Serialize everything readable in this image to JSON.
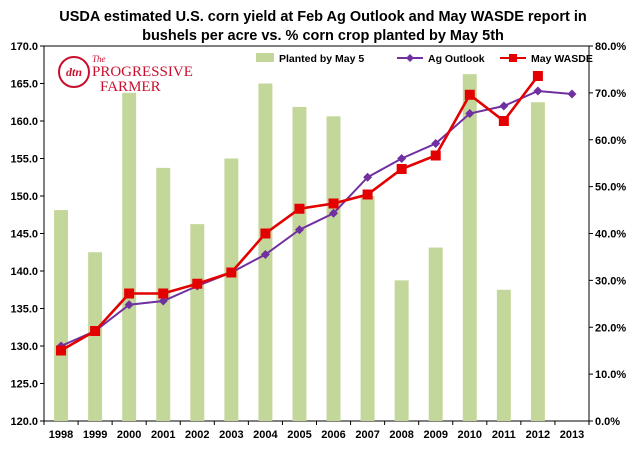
{
  "colors": {
    "bar": "#c4d79b",
    "ag_outlook": "#7030a0",
    "may_wasde": "#e30000",
    "axis": "#000000",
    "logo": "#c8102e"
  },
  "logo": {
    "icon_text": "dtn",
    "line1": "The",
    "line2": "PROGRESSIVE",
    "line3": "FARMER"
  },
  "chart_data": {
    "type": "bar+line",
    "title": "USDA  estimated U.S. corn yield at Feb Ag Outlook and May WASDE report in bushels per acre vs. % corn crop planted by May 5th",
    "title_lines": [
      "USDA  estimated U.S. corn yield at Feb Ag Outlook and May WASDE report in",
      "bushels per acre vs. % corn crop planted by May 5th"
    ],
    "categories": [
      "1998",
      "1999",
      "2000",
      "2001",
      "2002",
      "2003",
      "2004",
      "2005",
      "2006",
      "2007",
      "2008",
      "2009",
      "2010",
      "2011",
      "2012",
      "2013"
    ],
    "left_axis": {
      "range": [
        120,
        170
      ],
      "ticks": [
        "120.0",
        "125.0",
        "130.0",
        "135.0",
        "140.0",
        "145.0",
        "150.0",
        "155.0",
        "160.0",
        "165.0",
        "170.0"
      ]
    },
    "right_axis": {
      "range": [
        0,
        80
      ],
      "ticks": [
        "0.0%",
        "10.0%",
        "20.0%",
        "30.0%",
        "40.0%",
        "50.0%",
        "60.0%",
        "70.0%",
        "80.0%"
      ]
    },
    "legend_position": "top-right",
    "series": [
      {
        "name": "Planted by May 5",
        "type": "bar",
        "axis": "right",
        "values": [
          45,
          36,
          70,
          54,
          42,
          56,
          72,
          67,
          65,
          48,
          30,
          37,
          74,
          28,
          68,
          null
        ]
      },
      {
        "name": "Ag Outlook",
        "type": "line",
        "marker": "diamond",
        "axis": "left",
        "values": [
          130.0,
          132.0,
          135.5,
          136.0,
          138.0,
          139.8,
          142.2,
          145.5,
          147.7,
          152.5,
          155.0,
          157.0,
          161.0,
          162.0,
          164.0,
          163.6
        ]
      },
      {
        "name": "May WASDE",
        "type": "line",
        "marker": "square",
        "axis": "left",
        "values": [
          129.4,
          132.0,
          137.0,
          137.0,
          138.3,
          139.8,
          145.0,
          148.3,
          149.0,
          150.2,
          153.6,
          155.4,
          163.5,
          160.0,
          166.0,
          null
        ]
      }
    ]
  }
}
